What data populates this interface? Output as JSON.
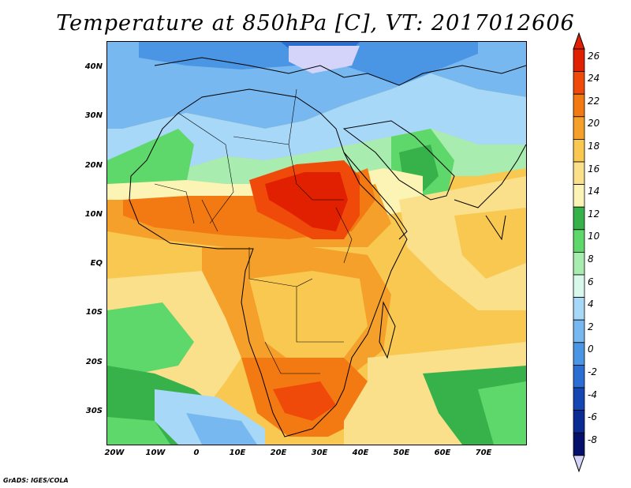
{
  "title": "Temperature at 850hPa [C], VT: 2017012606",
  "credit": "GrADS: IGES/COLA",
  "map": {
    "region": "Africa / Arabia",
    "variable": "850hPa temperature",
    "units": "C",
    "lat_ticks": [
      "40N",
      "30N",
      "20N",
      "10N",
      "EQ",
      "10S",
      "20S",
      "30S"
    ],
    "lon_ticks": [
      "20W",
      "10W",
      "0",
      "10E",
      "20E",
      "30E",
      "40E",
      "50E",
      "60E",
      "70E"
    ]
  },
  "colorbar": {
    "labels": [
      "26",
      "24",
      "22",
      "20",
      "18",
      "16",
      "14",
      "12",
      "10",
      "8",
      "6",
      "4",
      "2",
      "0",
      "-2",
      "-4",
      "-6",
      "-8"
    ],
    "colors": [
      "#e02000",
      "#f04a0a",
      "#f37a12",
      "#f5a02a",
      "#f8c850",
      "#fae08a",
      "#fbf4b4",
      "#37b24a",
      "#5ed86a",
      "#a8ecb0",
      "#d8f8ec",
      "#a8d8f8",
      "#78b8f0",
      "#4a96e4",
      "#2a6ed4",
      "#1446b4",
      "#0a2a94",
      "#04106a"
    ],
    "under_color": "#d4d4fa"
  }
}
